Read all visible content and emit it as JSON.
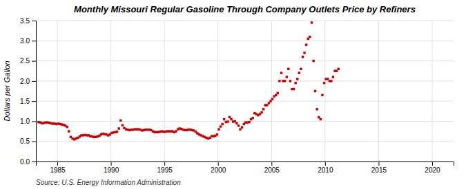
{
  "chart_data": {
    "type": "scatter",
    "title": "Monthly Missouri Regular Gasoline Through Company Outlets Price by Refiners",
    "ylabel": "Dollars per Gallon",
    "annotations": [
      "Source: U.S. Energy Information Administration"
    ],
    "color": "#CC0000",
    "marker": "square",
    "grid": true,
    "xlim": [
      1983,
      2022
    ],
    "ylim": [
      0.0,
      3.5
    ],
    "xticks": [
      1985,
      1990,
      1995,
      2000,
      2005,
      2010,
      2015,
      2020
    ],
    "yticks": [
      {
        "value": 0.0,
        "label": "0.0"
      },
      0.5,
      {
        "value": 1.0,
        "label": "1.0"
      },
      1.5,
      {
        "value": 2.0,
        "label": "2.0"
      },
      2.5,
      {
        "value": 3.0,
        "label": "3.0"
      },
      3.5
    ],
    "x": [
      1983.25,
      1983.42,
      1983.58,
      1983.75,
      1983.92,
      1984.08,
      1984.25,
      1984.42,
      1984.58,
      1984.75,
      1984.92,
      1985.08,
      1985.25,
      1985.42,
      1985.58,
      1985.75,
      1985.92,
      1986.08,
      1986.25,
      1986.42,
      1986.58,
      1986.75,
      1986.92,
      1987.08,
      1987.25,
      1987.42,
      1987.58,
      1987.75,
      1987.92,
      1988.08,
      1988.25,
      1988.42,
      1988.58,
      1988.75,
      1988.92,
      1989.08,
      1989.25,
      1989.42,
      1989.58,
      1989.75,
      1989.92,
      1990.08,
      1990.25,
      1990.42,
      1990.58,
      1990.75,
      1990.92,
      1991.08,
      1991.25,
      1991.42,
      1991.58,
      1991.75,
      1991.92,
      1992.08,
      1992.25,
      1992.42,
      1992.58,
      1992.75,
      1992.92,
      1993.08,
      1993.25,
      1993.42,
      1993.58,
      1993.75,
      1993.92,
      1994.08,
      1994.25,
      1994.42,
      1994.58,
      1994.75,
      1994.92,
      1995.08,
      1995.25,
      1995.42,
      1995.58,
      1995.75,
      1995.92,
      1996.08,
      1996.25,
      1996.42,
      1996.58,
      1996.75,
      1996.92,
      1997.08,
      1997.25,
      1997.42,
      1997.58,
      1997.75,
      1997.92,
      1998.08,
      1998.25,
      1998.42,
      1998.58,
      1998.75,
      1998.92,
      1999.08,
      1999.25,
      1999.42,
      1999.58,
      1999.75,
      1999.92,
      2000.08,
      2000.25,
      2000.42,
      2000.58,
      2000.75,
      2000.92,
      2001.08,
      2001.25,
      2001.42,
      2001.58,
      2001.75,
      2001.92,
      2002.08,
      2002.25,
      2002.42,
      2002.58,
      2002.75,
      2002.92,
      2003.08,
      2003.25,
      2003.42,
      2003.58,
      2003.75,
      2003.92,
      2004.08,
      2004.25,
      2004.42,
      2004.58,
      2004.75,
      2004.92,
      2005.08,
      2005.25,
      2005.42,
      2005.58,
      2005.75,
      2005.92,
      2006.08,
      2006.25,
      2006.42,
      2006.58,
      2006.75,
      2006.92,
      2007.08,
      2007.25,
      2007.42,
      2007.58,
      2007.75,
      2007.92,
      2008.08,
      2008.25,
      2008.42,
      2008.58,
      2008.75,
      2008.92,
      2009.08,
      2009.25,
      2009.42,
      2009.58,
      2009.75,
      2009.92,
      2010.08,
      2010.25,
      2010.42,
      2010.58,
      2010.75,
      2010.92,
      2011.08,
      2011.25
    ],
    "values": [
      0.98,
      0.97,
      0.95,
      0.96,
      0.97,
      0.97,
      0.96,
      0.95,
      0.94,
      0.94,
      0.93,
      0.94,
      0.93,
      0.92,
      0.91,
      0.89,
      0.86,
      0.75,
      0.61,
      0.57,
      0.55,
      0.57,
      0.59,
      0.62,
      0.65,
      0.65,
      0.66,
      0.65,
      0.65,
      0.63,
      0.62,
      0.61,
      0.61,
      0.62,
      0.64,
      0.67,
      0.69,
      0.68,
      0.67,
      0.65,
      0.67,
      0.71,
      0.72,
      0.73,
      0.74,
      0.82,
      1.02,
      0.9,
      0.83,
      0.8,
      0.79,
      0.78,
      0.79,
      0.79,
      0.8,
      0.8,
      0.8,
      0.79,
      0.77,
      0.78,
      0.79,
      0.79,
      0.79,
      0.78,
      0.75,
      0.73,
      0.73,
      0.73,
      0.74,
      0.75,
      0.74,
      0.74,
      0.75,
      0.75,
      0.75,
      0.75,
      0.73,
      0.75,
      0.8,
      0.82,
      0.81,
      0.79,
      0.78,
      0.78,
      0.79,
      0.79,
      0.78,
      0.77,
      0.74,
      0.7,
      0.67,
      0.65,
      0.63,
      0.61,
      0.59,
      0.57,
      0.59,
      0.63,
      0.63,
      0.64,
      0.67,
      0.8,
      0.87,
      0.93,
      1.05,
      0.98,
      0.99,
      1.1,
      1.05,
      0.99,
      1.0,
      0.95,
      0.89,
      0.8,
      0.85,
      0.93,
      0.97,
      0.97,
      0.98,
      1.05,
      1.08,
      1.2,
      1.18,
      1.15,
      1.18,
      1.22,
      1.3,
      1.4,
      1.4,
      1.45,
      1.5,
      1.55,
      1.62,
      1.65,
      1.7,
      2.0,
      2.2,
      2.0,
      2.0,
      2.1,
      2.3,
      2.0,
      1.8,
      1.8,
      1.95,
      2.05,
      2.2,
      2.3,
      2.6,
      2.7,
      2.9,
      3.05,
      3.1,
      3.45,
      2.5,
      1.75,
      1.3,
      1.1,
      1.05,
      1.65,
      1.95,
      2.05,
      2.05,
      2.0,
      2.0,
      2.1,
      2.25,
      2.25,
      2.3
    ]
  }
}
